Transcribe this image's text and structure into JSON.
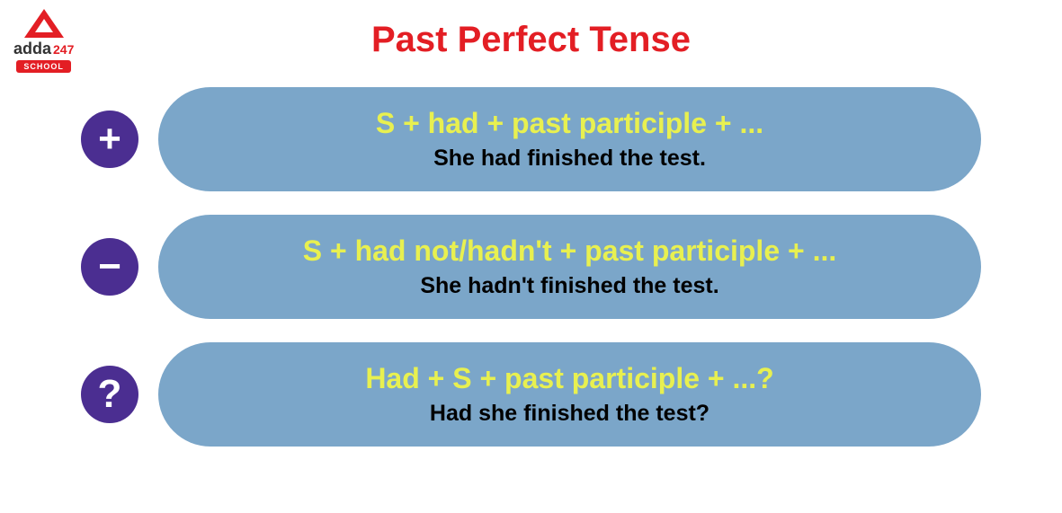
{
  "logo": {
    "brand_main": "adda",
    "brand_sub": "247",
    "tag": "SCHOOL"
  },
  "title": "Past Perfect Tense",
  "colors": {
    "title_color": "#e31e24",
    "symbol_bg": "#4b2e91",
    "symbol_fg": "#ffffff",
    "box_bg": "#7ba6c9",
    "formula_color": "#e8f050",
    "example_color": "#000000",
    "body_bg": "#ffffff"
  },
  "rules": [
    {
      "symbol": "+",
      "formula": "S + had + past participle + ...",
      "example": "She had finished the test."
    },
    {
      "symbol": "−",
      "formula": "S + had not/hadn't + past participle + ...",
      "example": "She hadn't finished the test."
    },
    {
      "symbol": "?",
      "formula": "Had + S + past participle + ...?",
      "example": "Had she finished the test?"
    }
  ]
}
